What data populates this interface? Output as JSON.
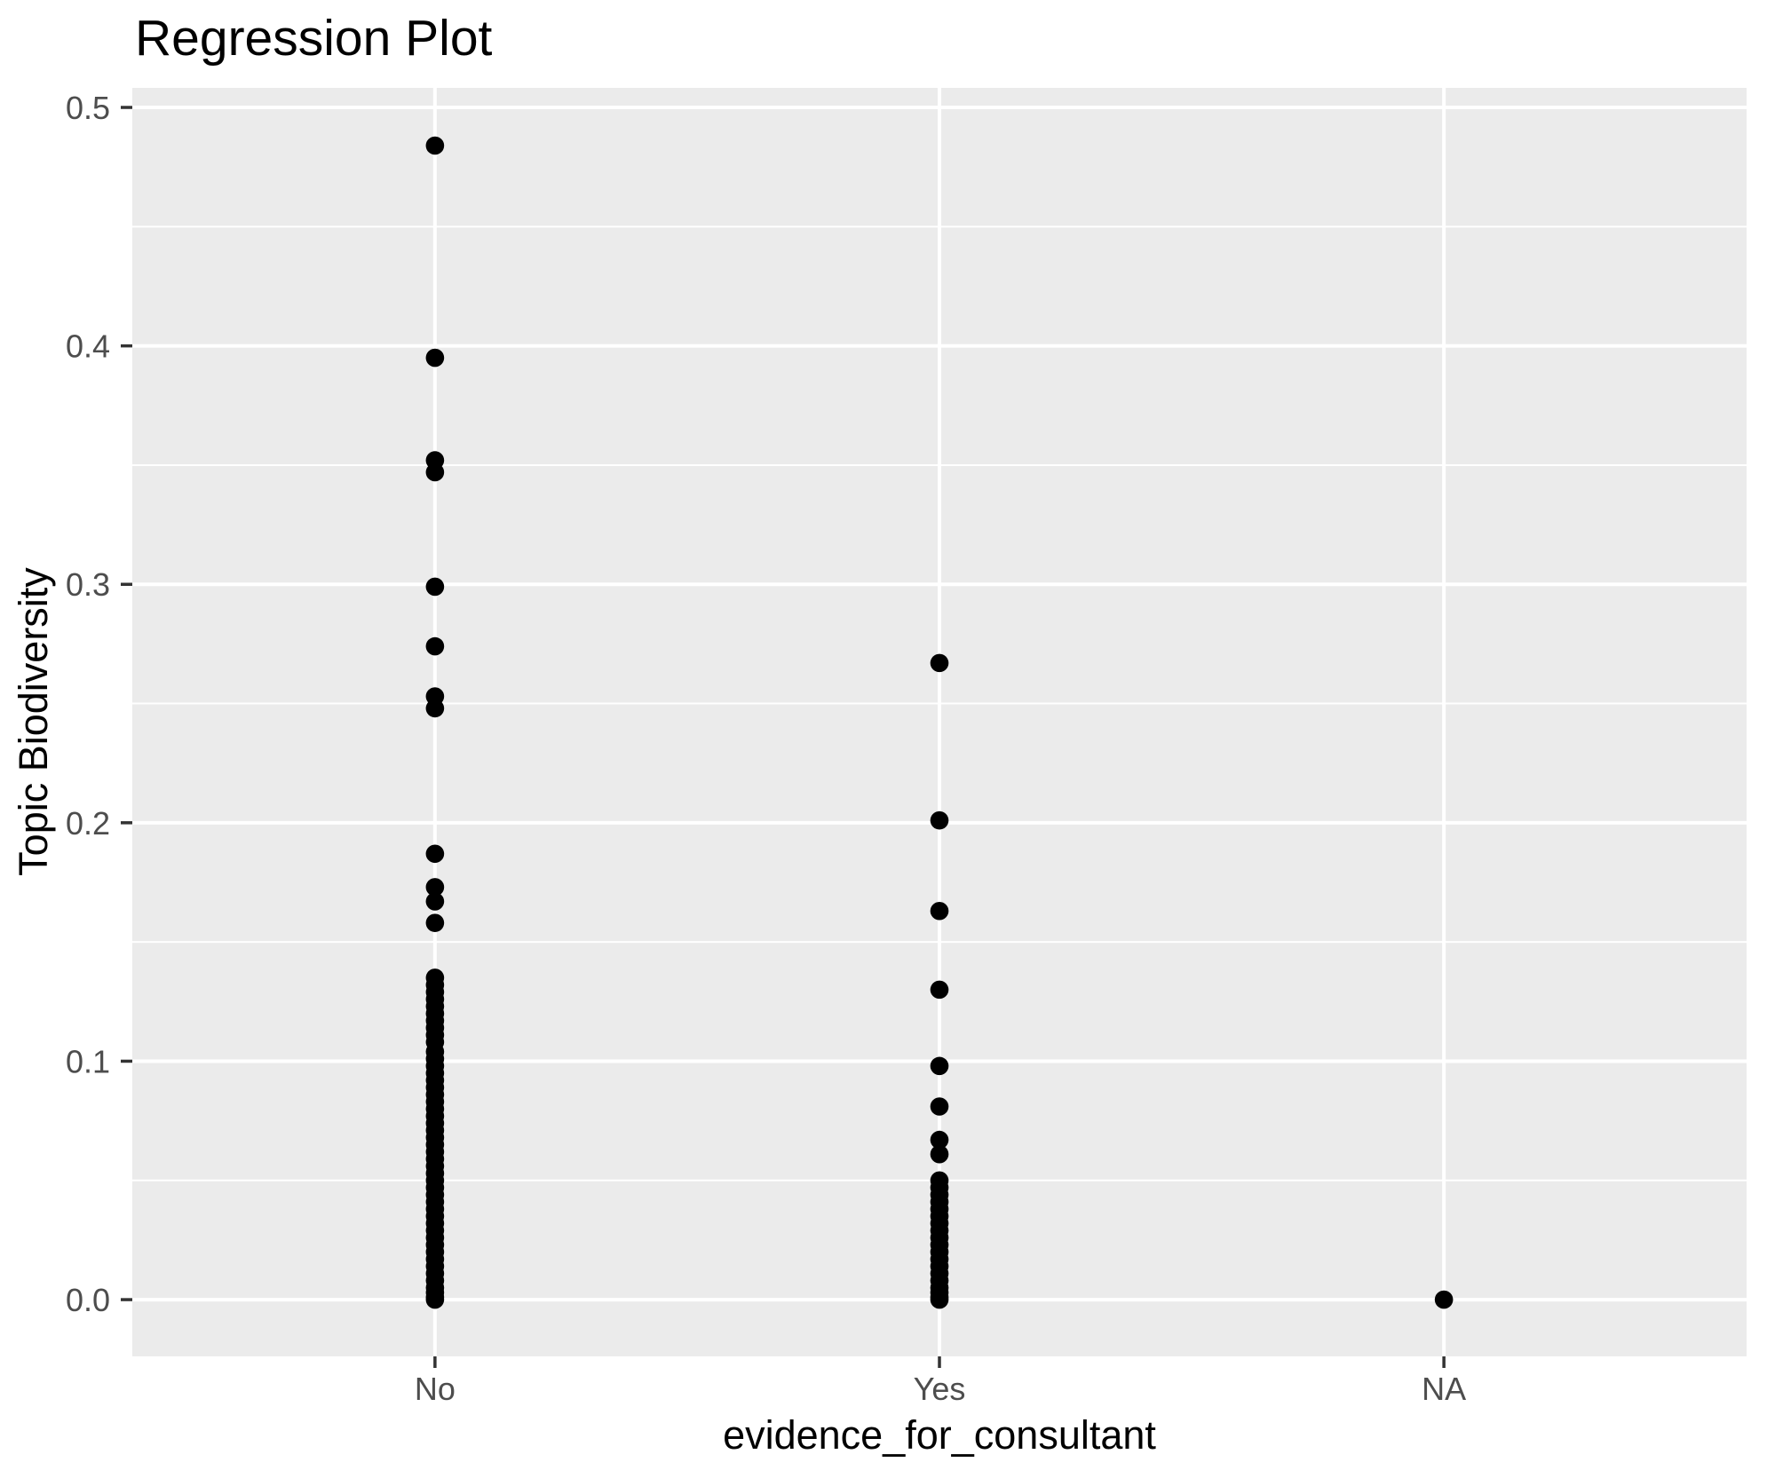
{
  "chart_data": {
    "type": "scatter",
    "title": "Regression Plot",
    "xlabel": "evidence_for_consultant",
    "ylabel": "Topic Biodiversity",
    "categories": [
      "No",
      "Yes",
      "NA"
    ],
    "y_tick_labels": [
      "0.0",
      "0.1",
      "0.2",
      "0.3",
      "0.4",
      "0.5"
    ],
    "y_major_ticks": [
      0.0,
      0.1,
      0.2,
      0.3,
      0.4,
      0.5
    ],
    "y_minor_ticks": [
      0.05,
      0.15,
      0.25,
      0.35,
      0.45
    ],
    "ylim": [
      -0.0238,
      0.5082
    ],
    "grid": "major-and-minor-horizontal-white, major-vertical-at-categories",
    "legend_position": "none",
    "series": [
      {
        "name": "No",
        "values": [
          0.484,
          0.395,
          0.352,
          0.347,
          0.299,
          0.274,
          0.253,
          0.248,
          0.187,
          0.173,
          0.167,
          0.158,
          0.135,
          0.132,
          0.129,
          0.126,
          0.123,
          0.12,
          0.117,
          0.114,
          0.111,
          0.108,
          0.104,
          0.101,
          0.098,
          0.095,
          0.092,
          0.089,
          0.086,
          0.083,
          0.08,
          0.077,
          0.074,
          0.071,
          0.068,
          0.065,
          0.062,
          0.059,
          0.056,
          0.053,
          0.05,
          0.047,
          0.044,
          0.041,
          0.038,
          0.035,
          0.032,
          0.029,
          0.026,
          0.023,
          0.02,
          0.017,
          0.014,
          0.011,
          0.008,
          0.005,
          0.003,
          0.001,
          0.0
        ]
      },
      {
        "name": "Yes",
        "values": [
          0.267,
          0.201,
          0.163,
          0.13,
          0.098,
          0.081,
          0.067,
          0.061,
          0.05,
          0.047,
          0.044,
          0.041,
          0.038,
          0.035,
          0.032,
          0.029,
          0.026,
          0.023,
          0.02,
          0.017,
          0.014,
          0.011,
          0.008,
          0.005,
          0.003,
          0.001,
          0.0
        ]
      },
      {
        "name": "NA",
        "values": [
          0.0
        ]
      }
    ],
    "style": {
      "outer_background": "#FFFFFF",
      "panel_background": "#EBEBEB",
      "grid_color": "#FFFFFF",
      "point_color": "#000000",
      "axis_text_color": "#4D4D4D",
      "tick_mark_color": "#333333",
      "title_color": "#000000"
    }
  }
}
